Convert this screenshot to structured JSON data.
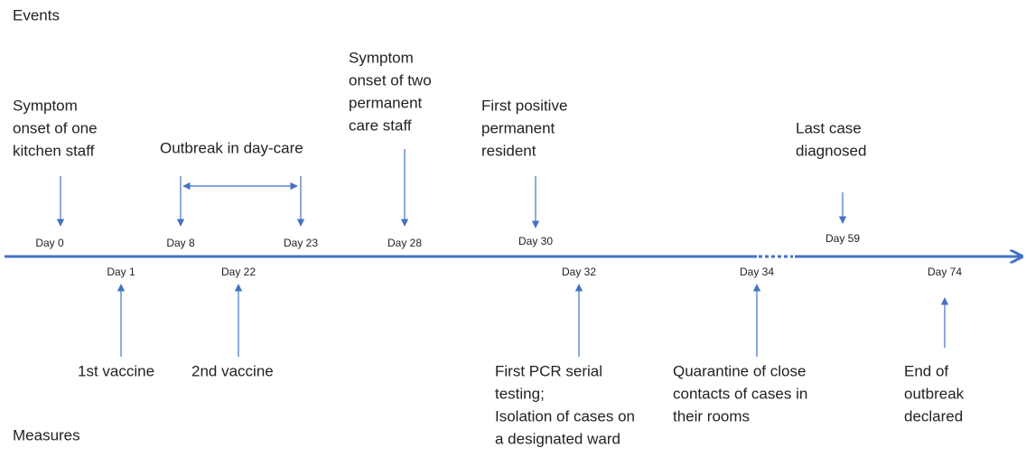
{
  "sections": {
    "events": "Events",
    "measures": "Measures"
  },
  "events": [
    {
      "day": "Day 0",
      "lines": [
        "Symptom",
        "onset of one",
        "kitchen staff"
      ]
    },
    {
      "day": "Day 8",
      "day_end": "Day 23",
      "lines": [
        "Outbreak in day-care"
      ]
    },
    {
      "day": "Day 28",
      "lines": [
        "Symptom",
        "onset of two",
        "permanent",
        "care staff"
      ]
    },
    {
      "day": "Day 30",
      "lines": [
        "First positive",
        "permanent",
        "resident"
      ]
    },
    {
      "day": "Day 59",
      "lines": [
        "Last case",
        "diagnosed"
      ]
    }
  ],
  "measures": [
    {
      "day": "Day 1",
      "lines": [
        "1st vaccine"
      ]
    },
    {
      "day": "Day 22",
      "lines": [
        "2nd vaccine"
      ]
    },
    {
      "day": "Day 32",
      "lines": [
        "First PCR serial",
        "testing;",
        "Isolation of cases on",
        "a designated ward"
      ]
    },
    {
      "day": "Day 34",
      "lines": [
        "Quarantine of close",
        "contacts of cases in",
        "their rooms"
      ]
    },
    {
      "day": "Day 74",
      "lines": [
        "End of",
        "outbreak",
        "declared"
      ]
    }
  ]
}
